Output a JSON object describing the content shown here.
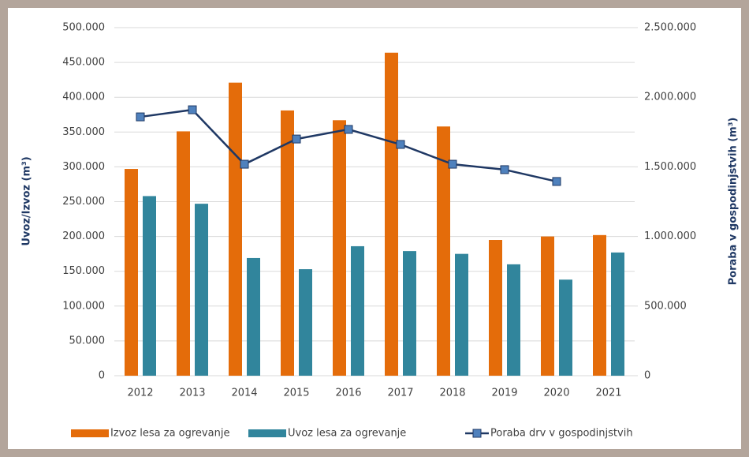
{
  "chart_data": {
    "type": "bar-line",
    "categories": [
      "2012",
      "2013",
      "2014",
      "2015",
      "2016",
      "2017",
      "2018",
      "2019",
      "2020",
      "2021"
    ],
    "series": [
      {
        "name": "Izvoz lesa za ogrevanje",
        "color": "#e46c0a",
        "type": "bar",
        "values": [
          297000,
          351000,
          421000,
          381000,
          367000,
          464000,
          358000,
          195000,
          200000,
          202000
        ]
      },
      {
        "name": "Uvoz lesa za ogrevanje",
        "color": "#31859c",
        "type": "bar",
        "values": [
          258000,
          247000,
          169000,
          153000,
          186000,
          179000,
          175000,
          160000,
          138000,
          177000
        ]
      },
      {
        "name": "Poraba drv v gospodinjstvih",
        "color": "#1f3864",
        "marker_color": "#4f81bd",
        "type": "line",
        "axis": "y2",
        "values": [
          1859000,
          1910000,
          1519000,
          1700000,
          1769000,
          1661000,
          1519000,
          1480000,
          1395000,
          null
        ]
      }
    ],
    "ylabel": "Uvoz/Izvoz (m³)",
    "y2label": "Poraba v gospodinjstvih (m³)",
    "ylim": [
      0,
      500000
    ],
    "yticks": [
      0,
      {
        "value": 50000,
        "label": "50.000"
      },
      {
        "value": 100000,
        "label": "100.000"
      },
      {
        "value": 150000,
        "label": "150.000"
      },
      {
        "value": 200000,
        "label": "200.000"
      },
      {
        "value": 250000,
        "label": "250.000"
      },
      {
        "value": 300000,
        "label": "300.000"
      },
      {
        "value": 350000,
        "label": "350.000"
      },
      {
        "value": 400000,
        "label": "400.000"
      },
      {
        "value": 450000,
        "label": "450.000"
      },
      {
        "value": 500000,
        "label": "500.000"
      }
    ],
    "y2lim": [
      0,
      2500000
    ],
    "y2ticks": [
      0,
      {
        "value": 500000,
        "label": "500.000"
      },
      {
        "value": 1000000,
        "label": "1.000.000"
      },
      {
        "value": 1500000,
        "label": "1.500.000"
      },
      {
        "value": 2000000,
        "label": "2.000.000"
      },
      {
        "value": 2500000,
        "label": "2.500.000"
      }
    ],
    "grid": true,
    "legend": "bottom"
  }
}
